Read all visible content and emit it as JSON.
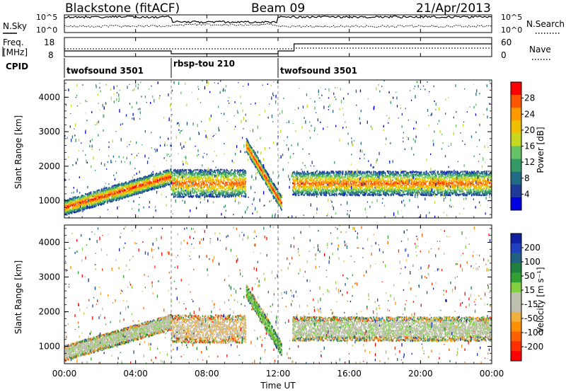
{
  "header": {
    "station": "Blackstone (fitACF)",
    "beam": "Beam 09",
    "date": "21/Apr/2013"
  },
  "top_panels": {
    "nsky_label": "N.Sky",
    "nsky_ticks": [
      "10^5",
      "10^0"
    ],
    "nsearch_label": "N.Search",
    "nsearch_ticks": [
      "10^5",
      "10^0"
    ],
    "freq_label_1": "Freq.",
    "freq_label_2": "[MHz]",
    "freq_ticks": [
      "18",
      "8"
    ],
    "nave_label": "Nave",
    "nave_ticks": [
      "60",
      "0"
    ],
    "cpid_label": "CPID",
    "cpid_segments": [
      {
        "label": "twofsound 3501",
        "start_hour": 0,
        "end_hour": 6
      },
      {
        "label": "rbsp-tou 210",
        "start_hour": 6,
        "end_hour": 12
      },
      {
        "label": "twofsound 3501",
        "start_hour": 12,
        "end_hour": 24
      }
    ]
  },
  "colorbars": {
    "power": {
      "label": "Power [dB]",
      "ticks": [
        "28",
        "24",
        "20",
        "16",
        "12",
        "8",
        "4"
      ],
      "colors": [
        "#ff0000",
        "#ff5500",
        "#ff9900",
        "#f0c000",
        "#c8d820",
        "#66c266",
        "#339966",
        "#226b86",
        "#1f3a9a",
        "#0000e0"
      ]
    },
    "velocity": {
      "label": "Velocity [m s⁻¹]",
      "ticks": [
        "200",
        "100",
        "50",
        "15",
        "-15",
        "-50",
        "-100",
        "-200"
      ],
      "colors": [
        "#1020a0",
        "#2040c0",
        "#206080",
        "#208040",
        "#30a030",
        "#80d040",
        "#c0c0b0",
        "#c0c0b0",
        "#f0b040",
        "#ff9000",
        "#ff6000",
        "#ff3000",
        "#ff0000"
      ]
    }
  },
  "chart_data": {
    "type": "heatmap",
    "xlabel": "Time UT",
    "x_ticks": [
      "00:00",
      "04:00",
      "08:00",
      "12:00",
      "16:00",
      "20:00",
      "00:00"
    ],
    "xlim_hours": [
      0,
      24
    ],
    "ylabel": "Slant Range [km]",
    "y_ticks": [
      "4000",
      "3000",
      "2000",
      "1000"
    ],
    "ylim_km": [
      500,
      4500
    ],
    "panels": [
      {
        "name": "Power",
        "unit": "dB",
        "scale": [
          0,
          30
        ],
        "bands": [
          {
            "hours": [
              0,
              6
            ],
            "range_start_km": 800,
            "range_end_km": 1700,
            "width_km": 450,
            "peak": 28
          },
          {
            "hours": [
              6,
              10.2
            ],
            "range_start_km": 1500,
            "range_end_km": 1500,
            "width_km": 800,
            "peak": 26
          },
          {
            "hours": [
              10.2,
              12.2
            ],
            "range_start_km": 2600,
            "range_end_km": 900,
            "width_km": 400,
            "peak": 28
          },
          {
            "hours": [
              12.8,
              24
            ],
            "range_start_km": 1500,
            "range_end_km": 1500,
            "width_km": 700,
            "peak": 26
          }
        ]
      },
      {
        "name": "Velocity",
        "unit": "m s^-1",
        "scale": [
          -200,
          200
        ],
        "bands": [
          {
            "hours": [
              0,
              6
            ],
            "range_start_km": 800,
            "range_end_km": 1700,
            "width_km": 450,
            "velocity": 0
          },
          {
            "hours": [
              6,
              10.2
            ],
            "range_start_km": 1500,
            "range_end_km": 1500,
            "width_km": 800,
            "velocity": -40
          },
          {
            "hours": [
              10.2,
              12.2
            ],
            "range_start_km": 2600,
            "range_end_km": 900,
            "width_km": 400,
            "velocity": 40
          },
          {
            "hours": [
              12.8,
              24
            ],
            "range_start_km": 1500,
            "range_end_km": 1500,
            "width_km": 700,
            "velocity": 0
          }
        ]
      }
    ]
  }
}
